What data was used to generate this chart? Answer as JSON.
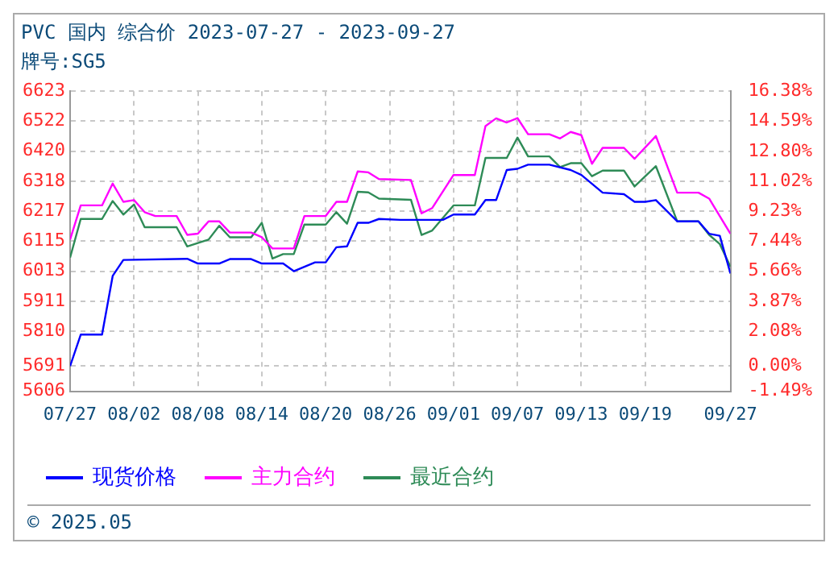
{
  "chart_data": {
    "type": "line",
    "title": "PVC 国内 综合价 2023-07-27 - 2023-09-27",
    "subtitle": "牌号:SG5",
    "xlim": [
      "--07-27",
      "--09-27"
    ],
    "xticks": [
      {
        "value": "--07-27",
        "label": "07/27"
      },
      {
        "value": "--08-02",
        "label": "08/02"
      },
      {
        "value": "--08-08",
        "label": "08/08"
      },
      {
        "value": "--08-14",
        "label": "08/14"
      },
      {
        "value": "--08-20",
        "label": "08/20"
      },
      {
        "value": "--08-26",
        "label": "08/26"
      },
      {
        "value": "--09-01",
        "label": "09/01"
      },
      {
        "value": "--09-07",
        "label": "09/07"
      },
      {
        "value": "--09-13",
        "label": "09/13"
      },
      {
        "value": "--09-19",
        "label": "09/19"
      },
      {
        "value": "--09-27",
        "label": "09/27"
      }
    ],
    "ylim": [
      5606,
      6623
    ],
    "yticks": [
      5606,
      5691,
      5810,
      5911,
      6013,
      6115,
      6217,
      6318,
      6420,
      6522,
      6623
    ],
    "y2lim": [
      -1.49,
      16.38
    ],
    "y2ticks": [
      {
        "value": -1.49,
        "label": "-1.49%"
      },
      {
        "value": 0,
        "label": "0.00%"
      },
      {
        "value": 2.08,
        "label": "2.08%"
      },
      {
        "value": 3.87,
        "label": "3.87%"
      },
      {
        "value": 5.66,
        "label": "5.66%"
      },
      {
        "value": 7.44,
        "label": "7.44%"
      },
      {
        "value": 9.23,
        "label": "9.23%"
      },
      {
        "value": 11.02,
        "label": "11.02%"
      },
      {
        "value": 12.8,
        "label": "12.80%"
      },
      {
        "value": 14.59,
        "label": "14.59%"
      },
      {
        "value": 16.38,
        "label": "16.38%"
      }
    ],
    "grid": true,
    "legend": "bottom",
    "marker": "none",
    "line_style": "solid",
    "annotations": [
      "© 2025.05"
    ],
    "series": [
      {
        "name": "现货价格",
        "color": "#0000ff",
        "x": [
          "--07-27",
          "--07-28",
          "--07-30",
          "--07-31",
          "--08-01",
          "--08-07",
          "--08-08",
          "--08-10",
          "--08-11",
          "--08-13",
          "--08-14",
          "--08-16",
          "--08-17",
          "--08-19",
          "--08-20",
          "--08-21",
          "--08-22",
          "--08-23",
          "--08-24",
          "--08-25",
          "--08-27",
          "--08-31",
          "--09-01",
          "--09-03",
          "--09-04",
          "--09-05",
          "--09-06",
          "--09-07",
          "--09-08",
          "--09-10",
          "--09-12",
          "--09-13",
          "--09-15",
          "--09-17",
          "--09-18",
          "--09-19",
          "--09-20",
          "--09-22",
          "--09-24",
          "--09-25",
          "--09-26",
          "--09-27"
        ],
        "values": [
          5691,
          5798,
          5798,
          5997,
          6051,
          6055,
          6039,
          6039,
          6054,
          6054,
          6039,
          6039,
          6013,
          6043,
          6043,
          6094,
          6097,
          6177,
          6177,
          6190,
          6187,
          6187,
          6205,
          6205,
          6254,
          6254,
          6356,
          6360,
          6374,
          6374,
          6356,
          6339,
          6279,
          6274,
          6248,
          6248,
          6254,
          6182,
          6182,
          6140,
          6133,
          6005
        ]
      },
      {
        "name": "主力合约",
        "color": "#ff00ff",
        "x": [
          "--07-27",
          "--07-28",
          "--07-30",
          "--07-31",
          "--08-01",
          "--08-02",
          "--08-03",
          "--08-04",
          "--08-06",
          "--08-07",
          "--08-08",
          "--08-09",
          "--08-10",
          "--08-11",
          "--08-13",
          "--08-14",
          "--08-15",
          "--08-17",
          "--08-18",
          "--08-20",
          "--08-21",
          "--08-22",
          "--08-23",
          "--08-24",
          "--08-25",
          "--08-28",
          "--08-29",
          "--08-30",
          "--09-01",
          "--09-03",
          "--09-04",
          "--09-05",
          "--09-06",
          "--09-07",
          "--09-08",
          "--09-10",
          "--09-11",
          "--09-12",
          "--09-13",
          "--09-14",
          "--09-15",
          "--09-17",
          "--09-18",
          "--09-20",
          "--09-22",
          "--09-24",
          "--09-25",
          "--09-27"
        ],
        "values": [
          6120,
          6236,
          6236,
          6310,
          6248,
          6254,
          6213,
          6200,
          6200,
          6136,
          6140,
          6182,
          6182,
          6144,
          6144,
          6128,
          6090,
          6090,
          6200,
          6200,
          6248,
          6248,
          6351,
          6348,
          6325,
          6322,
          6209,
          6227,
          6339,
          6339,
          6505,
          6531,
          6517,
          6532,
          6477,
          6477,
          6463,
          6485,
          6474,
          6377,
          6431,
          6431,
          6394,
          6471,
          6279,
          6279,
          6259,
          6140
        ]
      },
      {
        "name": "最近合约",
        "color": "#2e8b57",
        "x": [
          "--07-27",
          "--07-28",
          "--07-30",
          "--07-31",
          "--08-01",
          "--08-02",
          "--08-03",
          "--08-06",
          "--08-07",
          "--08-09",
          "--08-10",
          "--08-11",
          "--08-13",
          "--08-14",
          "--08-15",
          "--08-16",
          "--08-17",
          "--08-18",
          "--08-20",
          "--08-21",
          "--08-22",
          "--08-23",
          "--08-24",
          "--08-25",
          "--08-28",
          "--08-29",
          "--08-30",
          "--09-01",
          "--09-03",
          "--09-04",
          "--09-06",
          "--09-07",
          "--09-08",
          "--09-10",
          "--09-11",
          "--09-12",
          "--09-13",
          "--09-14",
          "--09-15",
          "--09-17",
          "--09-18",
          "--09-20",
          "--09-22",
          "--09-24",
          "--09-25",
          "--09-26",
          "--09-27"
        ],
        "values": [
          6059,
          6190,
          6190,
          6251,
          6205,
          6239,
          6162,
          6162,
          6097,
          6120,
          6167,
          6128,
          6128,
          6177,
          6056,
          6071,
          6071,
          6171,
          6171,
          6213,
          6174,
          6282,
          6280,
          6259,
          6255,
          6136,
          6151,
          6236,
          6236,
          6397,
          6397,
          6466,
          6402,
          6402,
          6366,
          6379,
          6379,
          6335,
          6354,
          6354,
          6300,
          6369,
          6182,
          6182,
          6136,
          6105,
          6028
        ]
      }
    ]
  }
}
